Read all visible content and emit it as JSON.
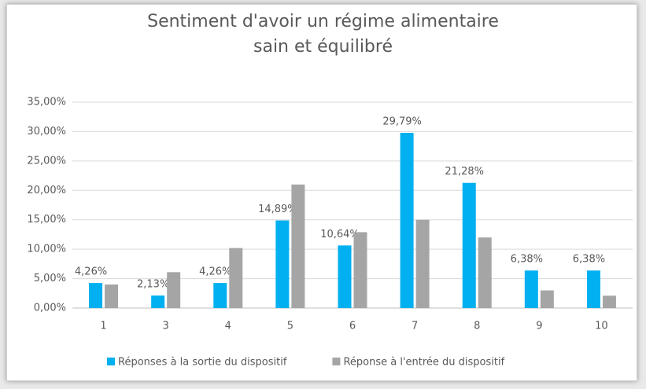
{
  "chart_data": {
    "type": "bar",
    "title": "Sentiment d'avoir un régime alimentaire sain et équilibré",
    "categories": [
      "1",
      "3",
      "4",
      "5",
      "6",
      "7",
      "8",
      "9",
      "10"
    ],
    "series": [
      {
        "name": "Réponses à la sortie du dispositif",
        "color": "#00b0f0",
        "values": [
          4.26,
          2.13,
          4.26,
          14.89,
          10.64,
          29.79,
          21.28,
          6.38,
          6.38
        ],
        "value_labels": [
          "4,26%",
          "2,13%",
          "4,26%",
          "14,89%",
          "10,64%",
          "29,79%",
          "21,28%",
          "6,38%",
          "6,38%"
        ]
      },
      {
        "name": "Réponse à l'entrée du dispositif",
        "color": "#a5a5a5",
        "values": [
          4.0,
          6.1,
          10.2,
          21.0,
          12.9,
          15.0,
          12.0,
          3.0,
          2.1
        ]
      }
    ],
    "ylim": [
      0,
      35
    ],
    "yticks": [
      {
        "value": 0,
        "label": "0,00%"
      },
      {
        "value": 5,
        "label": "5,00%"
      },
      {
        "value": 10,
        "label": "10,00%"
      },
      {
        "value": 15,
        "label": "15,00%"
      },
      {
        "value": 20,
        "label": "20,00%"
      },
      {
        "value": 25,
        "label": "25,00%"
      },
      {
        "value": 30,
        "label": "30,00%"
      },
      {
        "value": 35,
        "label": "35,00%"
      }
    ],
    "grid": true,
    "legend": "bottom"
  }
}
